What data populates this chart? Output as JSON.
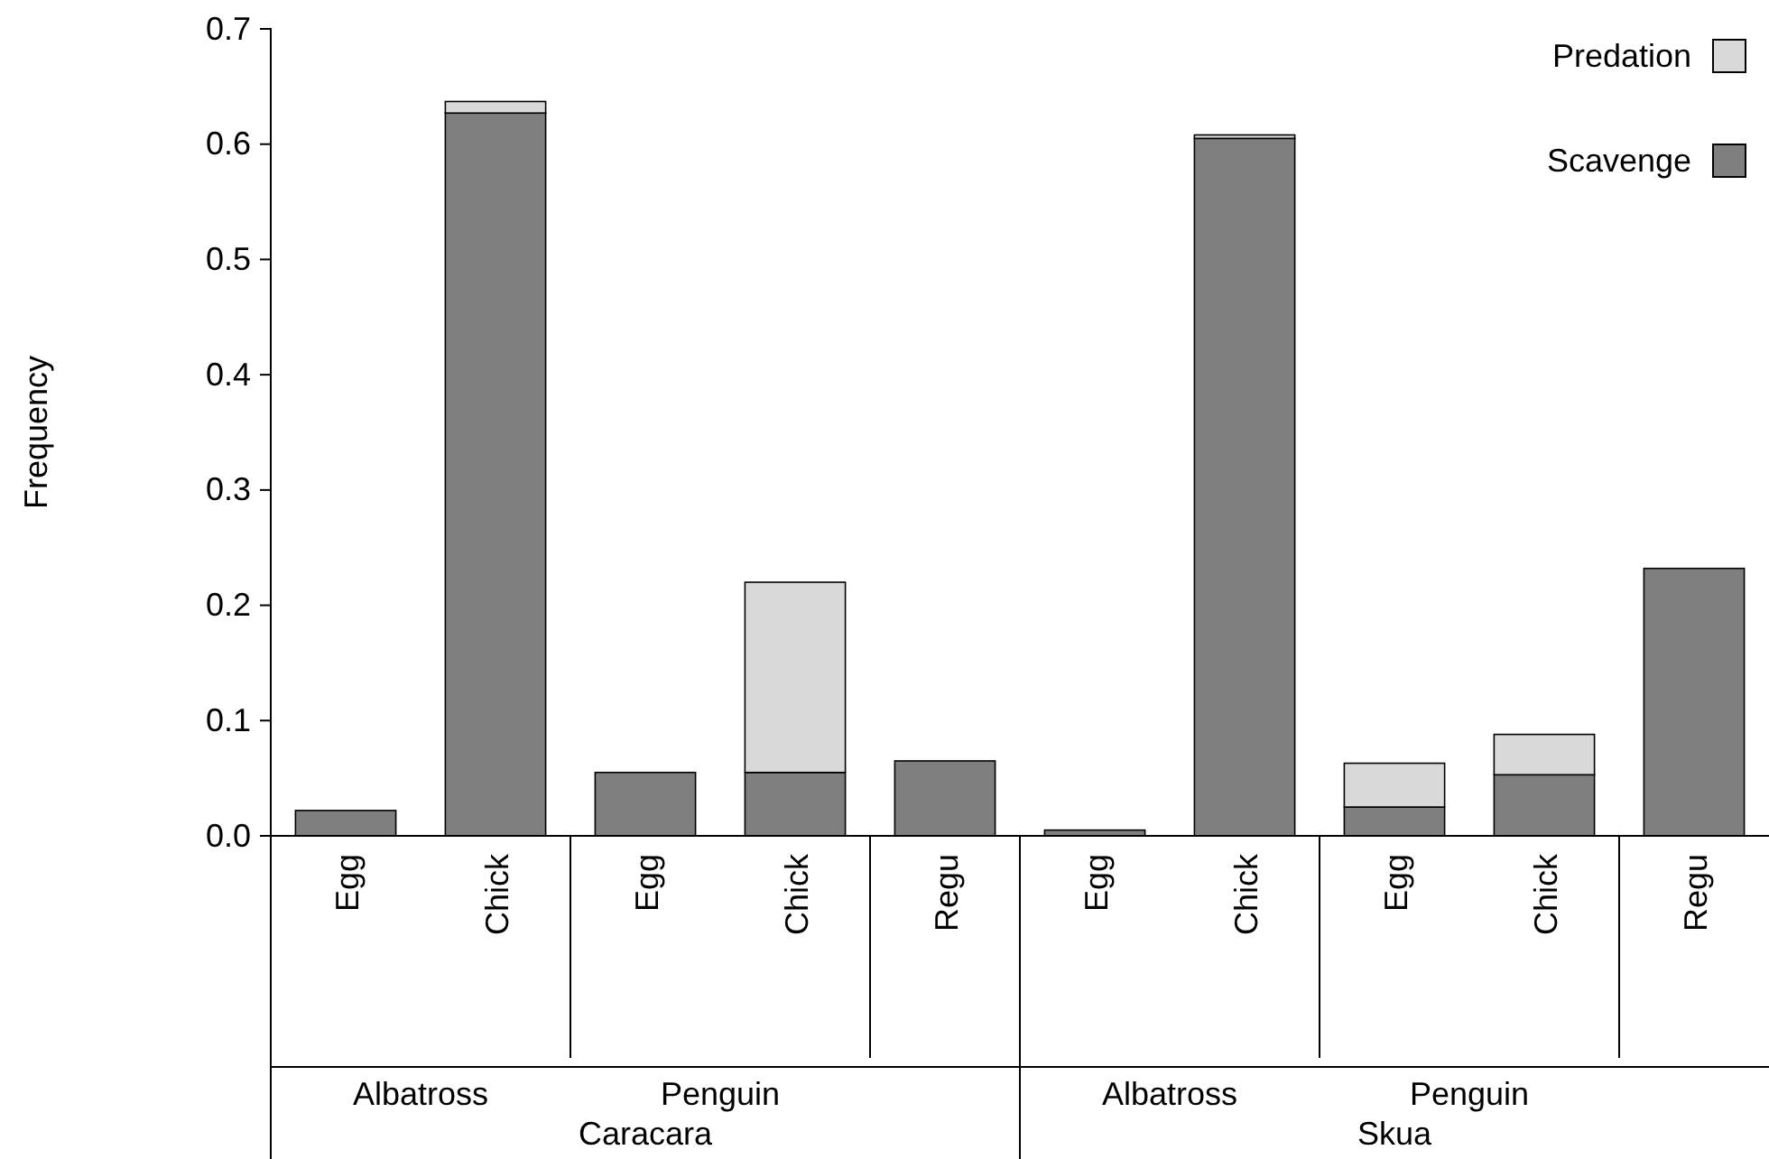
{
  "chart_data": {
    "type": "bar",
    "stacked": true,
    "ylabel": "Frequency",
    "categories": [
      "Egg",
      "Chick",
      "Egg",
      "Chick",
      "Regu",
      "Egg",
      "Chick",
      "Egg",
      "Chick",
      "Regu"
    ],
    "series": [
      {
        "name": "Scavenge",
        "color": "#7f7f7f",
        "values": [
          0.022,
          0.627,
          0.055,
          0.055,
          0.065,
          0.005,
          0.605,
          0.025,
          0.053,
          0.232
        ]
      },
      {
        "name": "Predation",
        "color": "#d9d9d9",
        "values": [
          0,
          0.01,
          0,
          0.165,
          0,
          0,
          0.003,
          0.038,
          0.035,
          0
        ]
      }
    ],
    "ylim": [
      0,
      0.7
    ],
    "yticks": [
      {
        "value": 0,
        "label": "0.0"
      },
      0.1,
      0.2,
      0.3,
      0.4,
      0.5,
      0.6,
      0.7
    ],
    "grid": false,
    "legend": "top right",
    "annotations": [
      "Albatross",
      "Penguin",
      "Albatross",
      "Penguin",
      "Caracara",
      "Skua"
    ]
  }
}
